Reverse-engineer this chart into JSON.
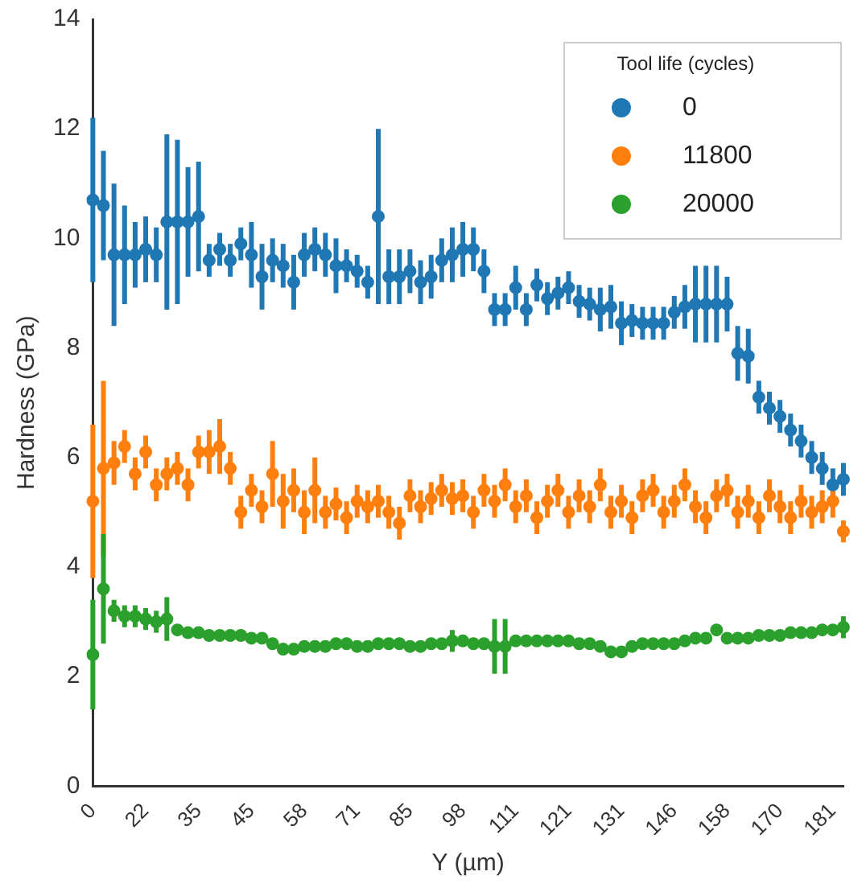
{
  "chart_data": {
    "type": "scatter",
    "xlabel": "Y (µm)",
    "ylabel": "Hardness (GPa)",
    "legend_title": "Tool life (cycles)",
    "legend": "top right",
    "grid": false,
    "marker": "circle",
    "categories": [
      "0",
      null,
      null,
      null,
      null,
      "22",
      null,
      null,
      null,
      null,
      "35",
      null,
      null,
      null,
      null,
      "45",
      null,
      null,
      null,
      null,
      "58",
      null,
      null,
      null,
      null,
      "71",
      null,
      null,
      null,
      null,
      "85",
      null,
      null,
      null,
      null,
      "98",
      null,
      null,
      null,
      null,
      "111",
      null,
      null,
      null,
      null,
      "121",
      null,
      null,
      null,
      null,
      "131",
      null,
      null,
      null,
      null,
      "146",
      null,
      null,
      null,
      null,
      "158",
      null,
      null,
      null,
      null,
      "170",
      null,
      null,
      null,
      null,
      "181",
      null
    ],
    "ylim": [
      0,
      14
    ],
    "yticks": [
      0,
      2,
      4,
      6,
      8,
      10,
      12,
      14
    ],
    "series": [
      {
        "name": "0",
        "color": "#1f77b4",
        "values": [
          10.7,
          10.6,
          9.7,
          9.7,
          9.7,
          9.8,
          9.7,
          10.3,
          10.3,
          10.3,
          10.4,
          9.6,
          9.8,
          9.6,
          9.9,
          9.7,
          9.3,
          9.6,
          9.5,
          9.2,
          9.7,
          9.8,
          9.7,
          9.5,
          9.5,
          9.4,
          9.2,
          10.4,
          9.3,
          9.3,
          9.4,
          9.2,
          9.3,
          9.6,
          9.7,
          9.8,
          9.8,
          9.4,
          8.7,
          8.7,
          9.1,
          8.7,
          9.15,
          8.9,
          9.0,
          9.1,
          8.85,
          8.8,
          8.7,
          8.75,
          8.45,
          8.5,
          8.45,
          8.45,
          8.45,
          8.65,
          8.75,
          8.8,
          8.8,
          8.8,
          8.8,
          7.9,
          7.85,
          7.1,
          6.9,
          6.75,
          6.5,
          6.3,
          6.0,
          5.8,
          5.5,
          5.6
        ],
        "errors": [
          1.5,
          1.0,
          1.3,
          0.9,
          0.6,
          0.6,
          0.5,
          1.6,
          1.5,
          1.0,
          1.0,
          0.3,
          0.3,
          0.3,
          0.3,
          0.6,
          0.6,
          0.4,
          0.4,
          0.5,
          0.4,
          0.4,
          0.4,
          0.5,
          0.3,
          0.3,
          0.3,
          1.6,
          0.5,
          0.5,
          0.4,
          0.4,
          0.4,
          0.4,
          0.5,
          0.5,
          0.4,
          0.4,
          0.3,
          0.3,
          0.4,
          0.3,
          0.3,
          0.3,
          0.3,
          0.3,
          0.3,
          0.3,
          0.4,
          0.4,
          0.4,
          0.3,
          0.3,
          0.3,
          0.3,
          0.3,
          0.4,
          0.7,
          0.7,
          0.7,
          0.5,
          0.5,
          0.5,
          0.3,
          0.3,
          0.3,
          0.3,
          0.3,
          0.3,
          0.3,
          0.3,
          0.3
        ]
      },
      {
        "name": "11800",
        "color": "#ff7f0e",
        "values": [
          5.2,
          5.8,
          5.9,
          6.2,
          5.7,
          6.1,
          5.5,
          5.7,
          5.8,
          5.5,
          6.1,
          6.1,
          6.2,
          5.8,
          5.0,
          5.4,
          5.1,
          5.7,
          5.2,
          5.4,
          5.0,
          5.4,
          5.0,
          5.15,
          4.9,
          5.2,
          5.1,
          5.2,
          5.0,
          4.8,
          5.3,
          5.1,
          5.25,
          5.4,
          5.25,
          5.3,
          5.0,
          5.4,
          5.2,
          5.5,
          5.1,
          5.3,
          4.9,
          5.2,
          5.4,
          5.0,
          5.3,
          5.1,
          5.5,
          5.0,
          5.2,
          4.9,
          5.3,
          5.4,
          5.0,
          5.2,
          5.5,
          5.1,
          4.9,
          5.3,
          5.4,
          5.0,
          5.2,
          4.9,
          5.3,
          5.1,
          4.9,
          5.2,
          5.0,
          5.1,
          5.2,
          4.65
        ],
        "errors": [
          1.4,
          1.6,
          0.4,
          0.3,
          0.3,
          0.3,
          0.3,
          0.3,
          0.3,
          0.3,
          0.3,
          0.4,
          0.5,
          0.3,
          0.3,
          0.3,
          0.3,
          0.6,
          0.5,
          0.4,
          0.4,
          0.6,
          0.3,
          0.3,
          0.3,
          0.3,
          0.3,
          0.3,
          0.3,
          0.3,
          0.3,
          0.3,
          0.3,
          0.3,
          0.3,
          0.3,
          0.3,
          0.3,
          0.3,
          0.3,
          0.3,
          0.3,
          0.3,
          0.3,
          0.3,
          0.3,
          0.3,
          0.3,
          0.3,
          0.3,
          0.3,
          0.3,
          0.3,
          0.3,
          0.3,
          0.3,
          0.3,
          0.3,
          0.3,
          0.3,
          0.3,
          0.3,
          0.3,
          0.3,
          0.3,
          0.3,
          0.3,
          0.3,
          0.3,
          0.3,
          0.3,
          0.2
        ]
      },
      {
        "name": "20000",
        "color": "#2ca02c",
        "values": [
          2.4,
          3.6,
          3.2,
          3.1,
          3.1,
          3.05,
          3.0,
          3.05,
          2.85,
          2.8,
          2.8,
          2.75,
          2.75,
          2.75,
          2.75,
          2.7,
          2.7,
          2.6,
          2.5,
          2.5,
          2.55,
          2.55,
          2.55,
          2.6,
          2.6,
          2.55,
          2.55,
          2.6,
          2.6,
          2.6,
          2.55,
          2.55,
          2.6,
          2.6,
          2.65,
          2.65,
          2.6,
          2.6,
          2.55,
          2.55,
          2.65,
          2.65,
          2.65,
          2.65,
          2.65,
          2.65,
          2.6,
          2.6,
          2.55,
          2.45,
          2.45,
          2.55,
          2.6,
          2.6,
          2.6,
          2.6,
          2.65,
          2.7,
          2.7,
          2.85,
          2.7,
          2.7,
          2.7,
          2.75,
          2.75,
          2.75,
          2.8,
          2.8,
          2.8,
          2.85,
          2.85,
          2.9
        ],
        "errors": [
          1.0,
          1.0,
          0.2,
          0.2,
          0.2,
          0.2,
          0.2,
          0.4,
          0.1,
          0.1,
          0.1,
          0.1,
          0.1,
          0.1,
          0.1,
          0.1,
          0.1,
          0.1,
          0.1,
          0.1,
          0.1,
          0.1,
          0.1,
          0.1,
          0.1,
          0.1,
          0.1,
          0.1,
          0.1,
          0.1,
          0.1,
          0.1,
          0.1,
          0.1,
          0.2,
          0.1,
          0.1,
          0.1,
          0.5,
          0.5,
          0.1,
          0.1,
          0.1,
          0.1,
          0.1,
          0.1,
          0.1,
          0.1,
          0.1,
          0.1,
          0.1,
          0.1,
          0.1,
          0.1,
          0.1,
          0.1,
          0.1,
          0.1,
          0.1,
          0.1,
          0.1,
          0.1,
          0.1,
          0.1,
          0.1,
          0.1,
          0.1,
          0.1,
          0.1,
          0.1,
          0.1,
          0.2
        ]
      }
    ]
  }
}
